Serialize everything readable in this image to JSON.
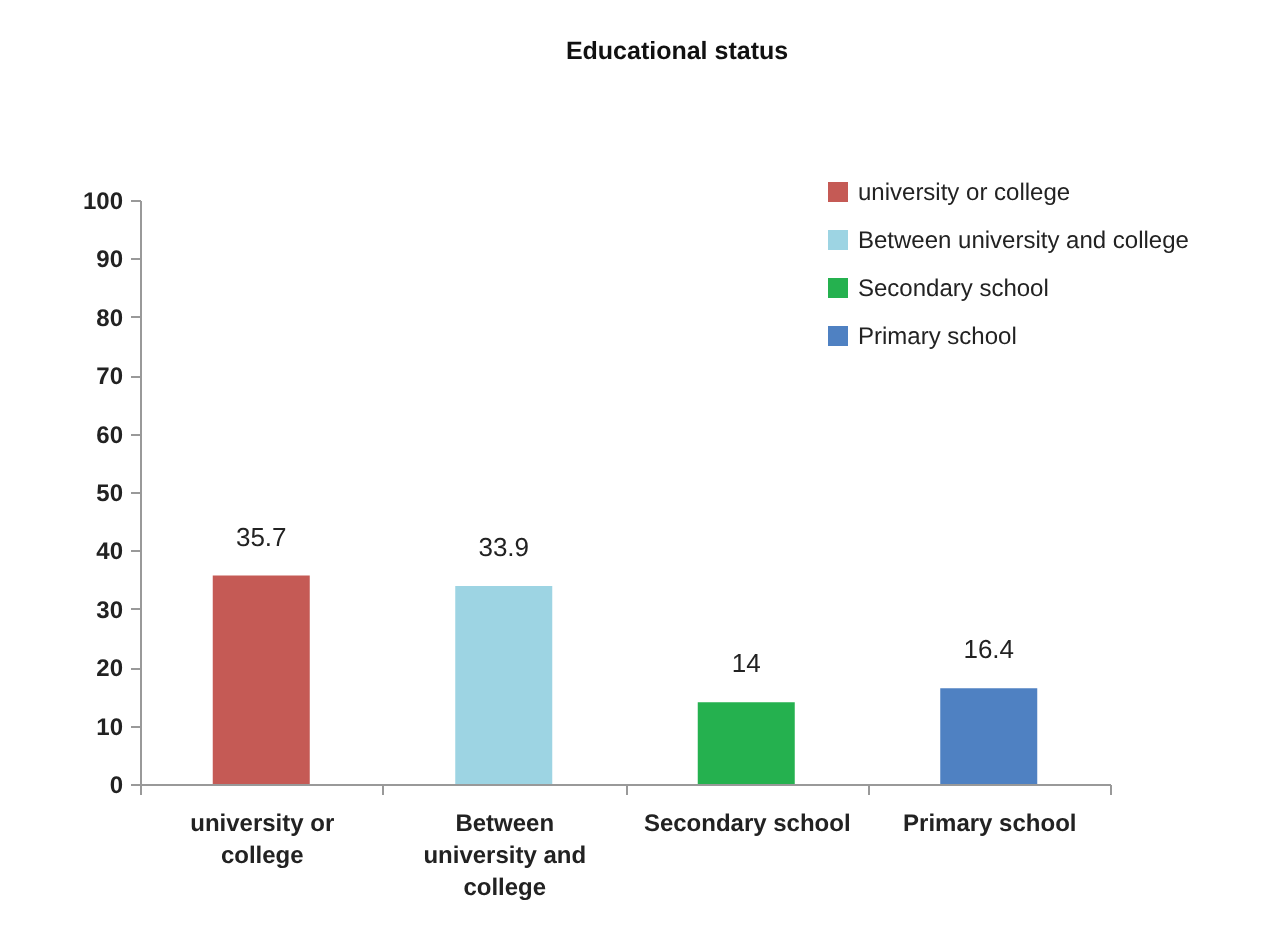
{
  "chart_data": {
    "type": "bar",
    "title": "Educational status",
    "categories": [
      "university or college",
      "Between university and college",
      "Secondary school",
      "Primary school"
    ],
    "series": [
      {
        "name": "university or college",
        "color": "#c55a55",
        "values": [
          35.7,
          null,
          null,
          null
        ]
      },
      {
        "name": "Between university and college",
        "color": "#9dd4e3",
        "values": [
          null,
          33.9,
          null,
          null
        ]
      },
      {
        "name": "Secondary school",
        "color": "#25b14f",
        "values": [
          null,
          null,
          14,
          null
        ]
      },
      {
        "name": "Primary school",
        "color": "#4f81c2",
        "values": [
          null,
          null,
          null,
          16.4
        ]
      }
    ],
    "stacked": true,
    "ylim": [
      0,
      100
    ],
    "yticks": [
      0,
      10,
      20,
      30,
      40,
      50,
      60,
      70,
      80,
      90,
      100
    ],
    "legend": "top right",
    "data_labels": true
  }
}
